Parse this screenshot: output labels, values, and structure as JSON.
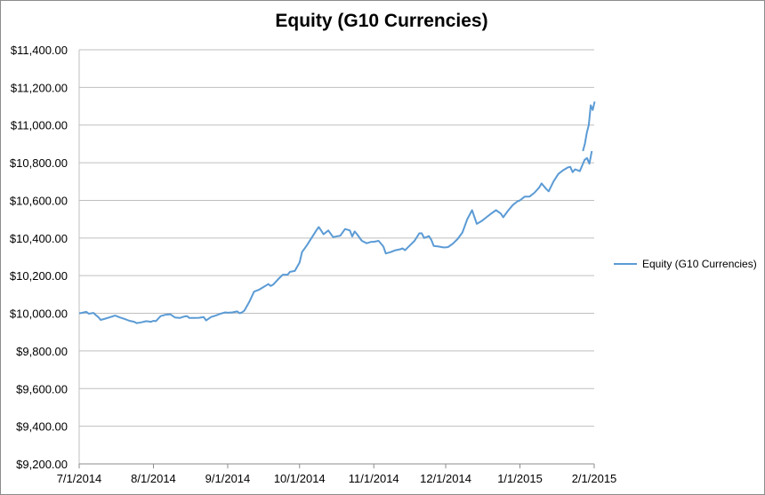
{
  "chart_data": {
    "type": "line",
    "title": "Equity (G10 Currencies)",
    "xlabel": "",
    "ylabel": "",
    "x_ticks": [
      "7/1/2014",
      "8/1/2014",
      "9/1/2014",
      "10/1/2014",
      "11/1/2014",
      "12/1/2014",
      "1/1/2015",
      "2/1/2015"
    ],
    "y_ticks": [
      "$9,200.00",
      "$9,400.00",
      "$9,600.00",
      "$9,800.00",
      "$10,000.00",
      "$10,200.00",
      "$10,400.00",
      "$10,600.00",
      "$10,800.00",
      "$11,000.00",
      "$11,200.00",
      "$11,400.00"
    ],
    "xlim": [
      "2014-07-01",
      "2015-02-01"
    ],
    "ylim": [
      9200,
      11400
    ],
    "grid": "horizontal",
    "legend": "right",
    "series": [
      {
        "name": "Equity (G10 Currencies)",
        "color": "#5b9bd5",
        "points": [
          [
            "2014-07-01",
            10000
          ],
          [
            "2014-07-02",
            10002
          ],
          [
            "2014-07-03",
            10005
          ],
          [
            "2014-07-04",
            10008
          ],
          [
            "2014-07-05",
            9998
          ],
          [
            "2014-07-07",
            10002
          ],
          [
            "2014-07-08",
            9990
          ],
          [
            "2014-07-09",
            9980
          ],
          [
            "2014-07-10",
            9965
          ],
          [
            "2014-07-12",
            9972
          ],
          [
            "2014-07-14",
            9980
          ],
          [
            "2014-07-16",
            9988
          ],
          [
            "2014-07-18",
            9978
          ],
          [
            "2014-07-20",
            9970
          ],
          [
            "2014-07-22",
            9960
          ],
          [
            "2014-07-24",
            9955
          ],
          [
            "2014-07-25",
            9948
          ],
          [
            "2014-07-27",
            9952
          ],
          [
            "2014-07-29",
            9958
          ],
          [
            "2014-07-31",
            9955
          ],
          [
            "2014-08-01",
            9960
          ],
          [
            "2014-08-02",
            9958
          ],
          [
            "2014-08-04",
            9985
          ],
          [
            "2014-08-06",
            9992
          ],
          [
            "2014-08-08",
            9995
          ],
          [
            "2014-08-10",
            9978
          ],
          [
            "2014-08-12",
            9975
          ],
          [
            "2014-08-14",
            9983
          ],
          [
            "2014-08-15",
            9985
          ],
          [
            "2014-08-16",
            9975
          ],
          [
            "2014-08-18",
            9975
          ],
          [
            "2014-08-20",
            9976
          ],
          [
            "2014-08-22",
            9980
          ],
          [
            "2014-08-23",
            9962
          ],
          [
            "2014-08-25",
            9980
          ],
          [
            "2014-08-27",
            9988
          ],
          [
            "2014-08-29",
            9998
          ],
          [
            "2014-08-31",
            10005
          ],
          [
            "2014-09-01",
            10003
          ],
          [
            "2014-09-03",
            10005
          ],
          [
            "2014-09-05",
            10010
          ],
          [
            "2014-09-06",
            10000
          ],
          [
            "2014-09-07",
            10005
          ],
          [
            "2014-09-08",
            10015
          ],
          [
            "2014-09-10",
            10060
          ],
          [
            "2014-09-12",
            10115
          ],
          [
            "2014-09-14",
            10125
          ],
          [
            "2014-09-16",
            10140
          ],
          [
            "2014-09-18",
            10155
          ],
          [
            "2014-09-19",
            10145
          ],
          [
            "2014-09-20",
            10152
          ],
          [
            "2014-09-22",
            10180
          ],
          [
            "2014-09-24",
            10205
          ],
          [
            "2014-09-26",
            10205
          ],
          [
            "2014-09-27",
            10220
          ],
          [
            "2014-09-29",
            10225
          ],
          [
            "2014-10-01",
            10270
          ],
          [
            "2014-10-02",
            10325
          ],
          [
            "2014-10-04",
            10360
          ],
          [
            "2014-10-06",
            10400
          ],
          [
            "2014-10-08",
            10440
          ],
          [
            "2014-10-09",
            10458
          ],
          [
            "2014-10-10",
            10440
          ],
          [
            "2014-10-11",
            10420
          ],
          [
            "2014-10-13",
            10440
          ],
          [
            "2014-10-15",
            10405
          ],
          [
            "2014-10-17",
            10410
          ],
          [
            "2014-10-18",
            10412
          ],
          [
            "2014-10-20",
            10448
          ],
          [
            "2014-10-22",
            10440
          ],
          [
            "2014-10-23",
            10408
          ],
          [
            "2014-10-24",
            10435
          ],
          [
            "2014-10-25",
            10420
          ],
          [
            "2014-10-27",
            10385
          ],
          [
            "2014-10-29",
            10372
          ],
          [
            "2014-10-31",
            10380
          ],
          [
            "2014-11-01",
            10380
          ],
          [
            "2014-11-03",
            10385
          ],
          [
            "2014-11-05",
            10355
          ],
          [
            "2014-11-06",
            10318
          ],
          [
            "2014-11-08",
            10325
          ],
          [
            "2014-11-10",
            10335
          ],
          [
            "2014-11-12",
            10340
          ],
          [
            "2014-11-13",
            10345
          ],
          [
            "2014-11-14",
            10335
          ],
          [
            "2014-11-16",
            10360
          ],
          [
            "2014-11-18",
            10385
          ],
          [
            "2014-11-20",
            10425
          ],
          [
            "2014-11-21",
            10425
          ],
          [
            "2014-11-22",
            10400
          ],
          [
            "2014-11-24",
            10410
          ],
          [
            "2014-11-25",
            10390
          ],
          [
            "2014-11-26",
            10358
          ],
          [
            "2014-11-28",
            10355
          ],
          [
            "2014-11-30",
            10350
          ],
          [
            "2014-12-01",
            10350
          ],
          [
            "2014-12-02",
            10352
          ],
          [
            "2014-12-04",
            10370
          ],
          [
            "2014-12-06",
            10395
          ],
          [
            "2014-12-08",
            10430
          ],
          [
            "2014-12-10",
            10500
          ],
          [
            "2014-12-12",
            10548
          ],
          [
            "2014-12-14",
            10475
          ],
          [
            "2014-12-16",
            10490
          ],
          [
            "2014-12-18",
            10510
          ],
          [
            "2014-12-20",
            10530
          ],
          [
            "2014-12-22",
            10548
          ],
          [
            "2014-12-24",
            10530
          ],
          [
            "2014-12-25",
            10510
          ],
          [
            "2014-12-27",
            10545
          ],
          [
            "2014-12-29",
            10575
          ],
          [
            "2014-12-31",
            10595
          ],
          [
            "2015-01-01",
            10600
          ],
          [
            "2015-01-03",
            10620
          ],
          [
            "2015-01-05",
            10620
          ],
          [
            "2015-01-07",
            10640
          ],
          [
            "2015-01-09",
            10668
          ],
          [
            "2015-01-10",
            10690
          ],
          [
            "2015-01-12",
            10660
          ],
          [
            "2015-01-13",
            10648
          ],
          [
            "2015-01-15",
            10700
          ],
          [
            "2015-01-17",
            10740
          ],
          [
            "2015-01-19",
            10760
          ],
          [
            "2015-01-21",
            10775
          ],
          [
            "2015-01-22",
            10778
          ],
          [
            "2015-01-23",
            10750
          ],
          [
            "2015-01-24",
            10765
          ],
          [
            "2015-01-26",
            10755
          ],
          [
            "2015-01-28",
            10815
          ],
          [
            "2015-01-29",
            10825
          ],
          [
            "2015-01-30",
            10795
          ],
          [
            "2015-01-31",
            10862
          ]
        ]
      }
    ]
  }
}
